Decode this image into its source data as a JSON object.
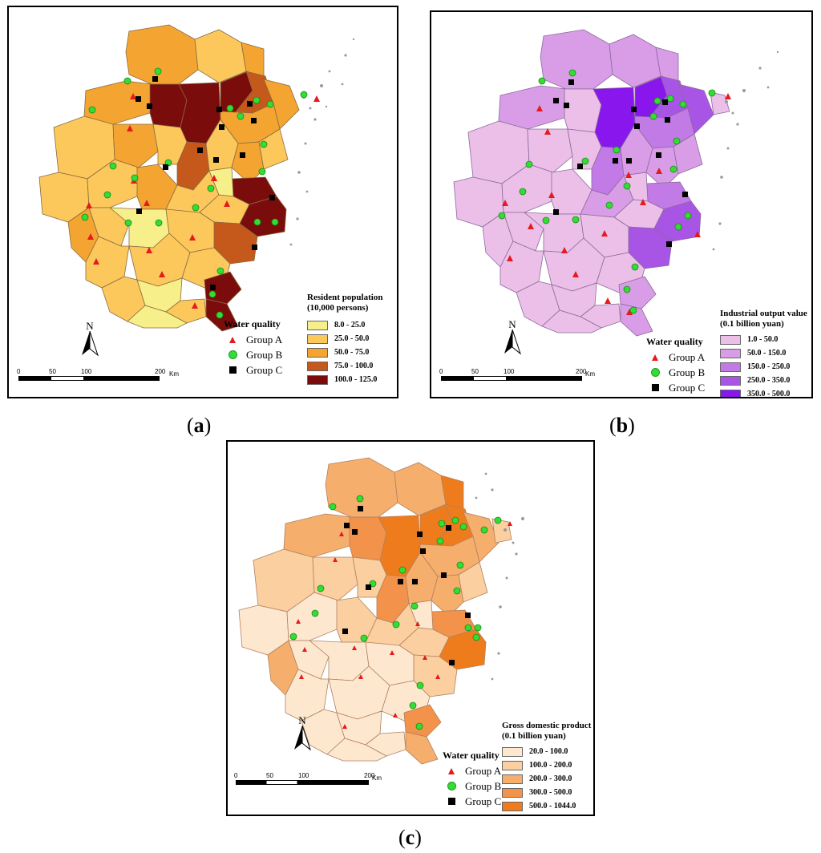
{
  "panels": [
    {
      "id": "a",
      "caption_letter": "a",
      "legend": {
        "title_line1": "Resident population",
        "title_line2": "(10,000 persons)",
        "classes": [
          {
            "label": "8.0 - 25.0",
            "color": "#f7f08a"
          },
          {
            "label": "25.0 - 50.0",
            "color": "#fcc85c"
          },
          {
            "label": "50.0 - 75.0",
            "color": "#f4a531"
          },
          {
            "label": "75.0 - 100.0",
            "color": "#c4591b"
          },
          {
            "label": "100.0 - 125.0",
            "color": "#7a0c0c"
          }
        ]
      }
    },
    {
      "id": "b",
      "caption_letter": "b",
      "legend": {
        "title_line1": "Industrial output value",
        "title_line2": "(0.1 billion yuan)",
        "classes": [
          {
            "label": "1.0 - 50.0",
            "color": "#ecbfe9"
          },
          {
            "label": "50.0 - 150.0",
            "color": "#d99de7"
          },
          {
            "label": "150.0 - 250.0",
            "color": "#c27ae6"
          },
          {
            "label": "250.0 - 350.0",
            "color": "#a855e6"
          },
          {
            "label": "350.0 - 500.0",
            "color": "#8a16ee"
          }
        ]
      }
    },
    {
      "id": "c",
      "caption_letter": "c",
      "legend": {
        "title_line1": "Gross domestic product",
        "title_line2": "(0.1 billion yuan)",
        "classes": [
          {
            "label": "20.0 - 100.0",
            "color": "#fde8cf"
          },
          {
            "label": "100.0 - 200.0",
            "color": "#fbcf9f"
          },
          {
            "label": "200.0 - 300.0",
            "color": "#f6ae6d"
          },
          {
            "label": "300.0 - 500.0",
            "color": "#f3924a"
          },
          {
            "label": "500.0 - 1044.0",
            "color": "#ee7c1c"
          }
        ]
      }
    }
  ],
  "water_quality": {
    "title": "Water quality",
    "groups": [
      {
        "label": "Group A",
        "symbol": "triangle",
        "color": "#e41a1c"
      },
      {
        "label": "Group B",
        "symbol": "circle",
        "color": "#33dd33"
      },
      {
        "label": "Group C",
        "symbol": "square",
        "color": "#000000"
      }
    ]
  },
  "north_label": "N",
  "scale_bar": {
    "ticks": [
      "0",
      "50",
      "100",
      "200"
    ],
    "unit": "Km"
  }
}
